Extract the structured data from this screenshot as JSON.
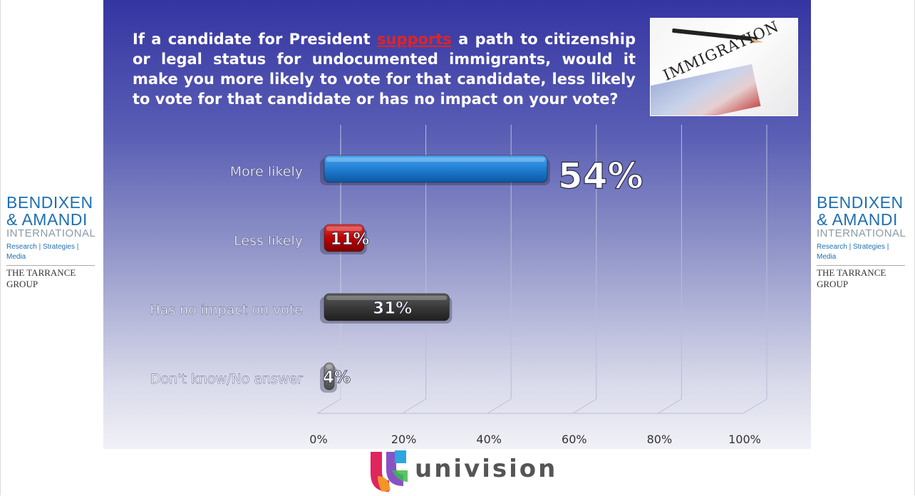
{
  "question": {
    "before": "If a candidate for President ",
    "keyword": "supports",
    "after": " a path to citizenship or legal status for undocumented immigrants, would it make you more likely to vote for that candidate, less likely to vote for that candidate or has no impact on your vote?"
  },
  "photo": {
    "word": "IMMIGRATION"
  },
  "logo": {
    "line1": "BENDIXEN",
    "line2": "& AMANDI",
    "line3": "INTERNATIONAL",
    "line4": "Research | Strategies | Media",
    "line5": "THE TARRANCE GROUP"
  },
  "footer": {
    "brand": "univision"
  },
  "colors": {
    "more_likely": "#1f7fd4",
    "less_likely": "#c00000",
    "no_impact": "#3a3a3a",
    "dont_know": "#6e6e6e",
    "keyword": "#e02424"
  },
  "chart_data": {
    "type": "bar",
    "orientation": "horizontal",
    "categories": [
      "More likely",
      "Less likely",
      "Has no impact on vote",
      "Don't know/No answer"
    ],
    "values": [
      54,
      11,
      31,
      4
    ],
    "value_labels": [
      "54%",
      "11%",
      "31%",
      "4%"
    ],
    "xlim": [
      0,
      100
    ],
    "x_ticks": [
      "0%",
      "20%",
      "40%",
      "60%",
      "80%",
      "100%"
    ],
    "grid": true,
    "title": "",
    "xlabel": "",
    "ylabel": ""
  }
}
